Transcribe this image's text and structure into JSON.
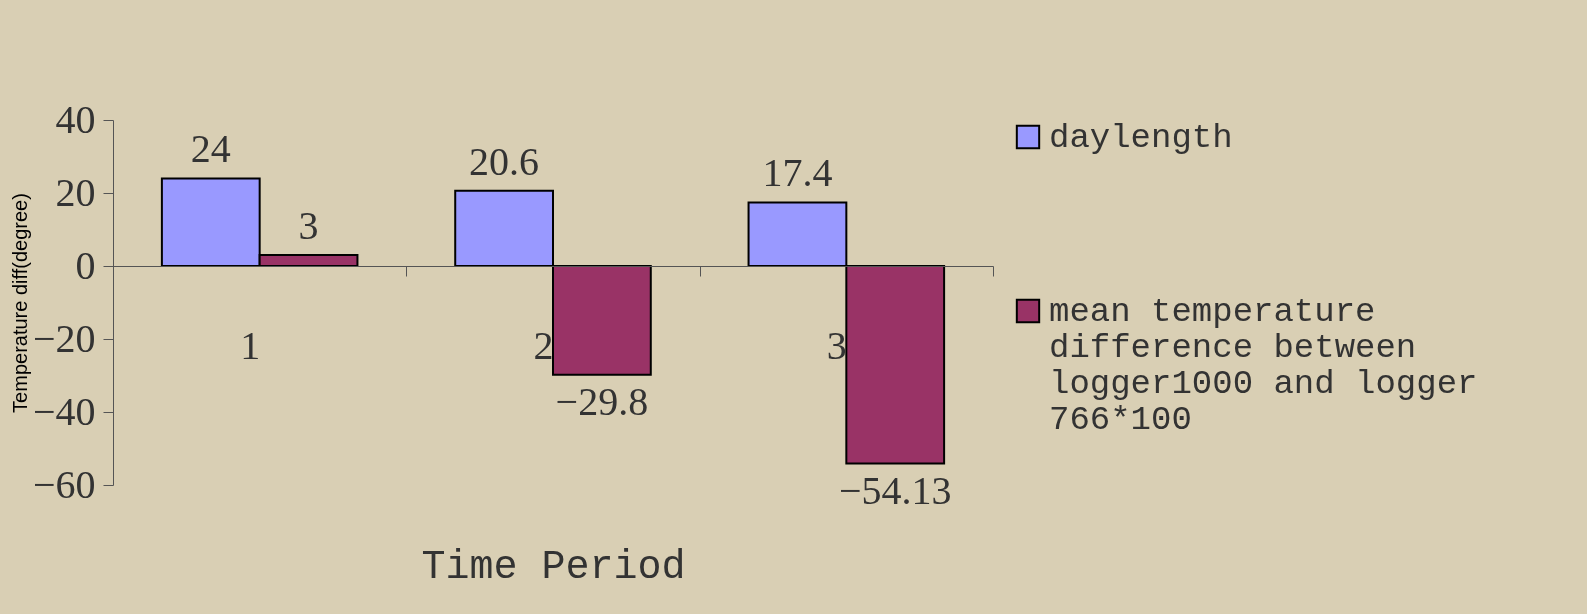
{
  "chart_data": {
    "type": "bar",
    "xlabel": "Time Period",
    "ylabel": "Temperature diff(degree)",
    "categories": [
      "1",
      "2",
      "3"
    ],
    "series": [
      {
        "name": "daylength",
        "color": "#9999ff",
        "values": [
          24,
          20.6,
          17.4
        ]
      },
      {
        "name": "mean temperature difference between logger1000 and logger 766*100",
        "color": "#993366",
        "values": [
          3,
          -29.8,
          -54.13
        ]
      }
    ],
    "ylim": [
      -60,
      40
    ],
    "yticks": [
      -60,
      -40,
      -20,
      0,
      20,
      40
    ],
    "grid": false,
    "legend": "right",
    "data_labels": true
  }
}
